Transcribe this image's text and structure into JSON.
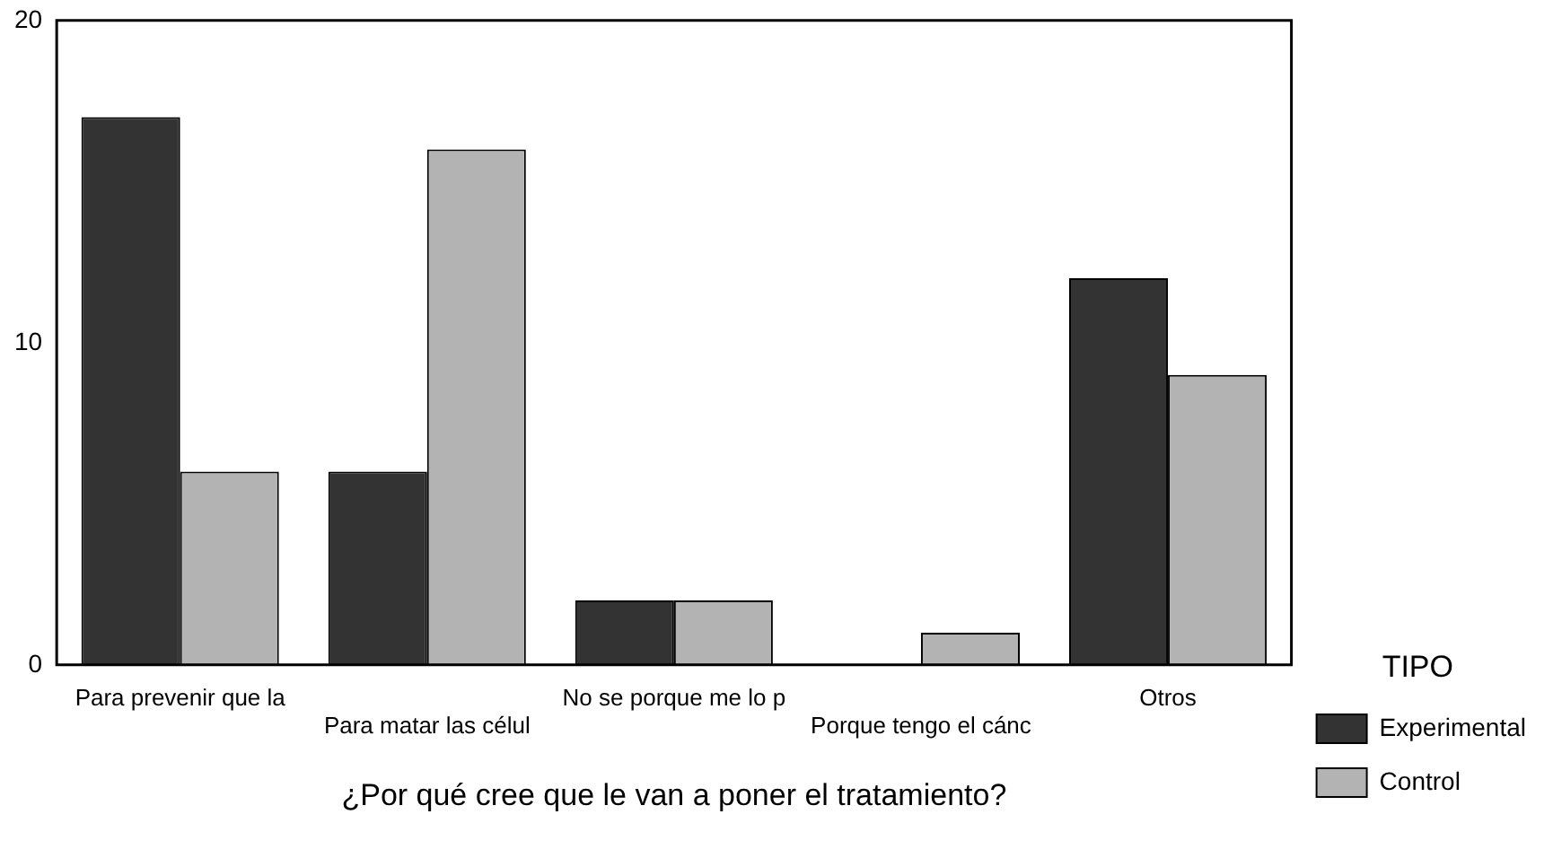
{
  "chart_data": {
    "type": "bar",
    "xlabel": "¿Por qué cree que le van a poner el tratamiento?",
    "legend_title": "TIPO",
    "legend": "right",
    "categories": [
      "Para prevenir que la",
      "Para matar las célul",
      "No se porque me lo p",
      "Porque tengo el cánc",
      "Otros"
    ],
    "series": [
      {
        "name": "Experimental",
        "color": "#333333",
        "values": [
          17,
          6,
          2,
          0,
          12
        ]
      },
      {
        "name": "Control",
        "color": "#b3b3b3",
        "values": [
          6,
          16,
          2,
          1,
          9
        ]
      }
    ],
    "ylim": [
      0,
      20
    ],
    "yticks": [
      0,
      10,
      20
    ],
    "grid": false
  }
}
